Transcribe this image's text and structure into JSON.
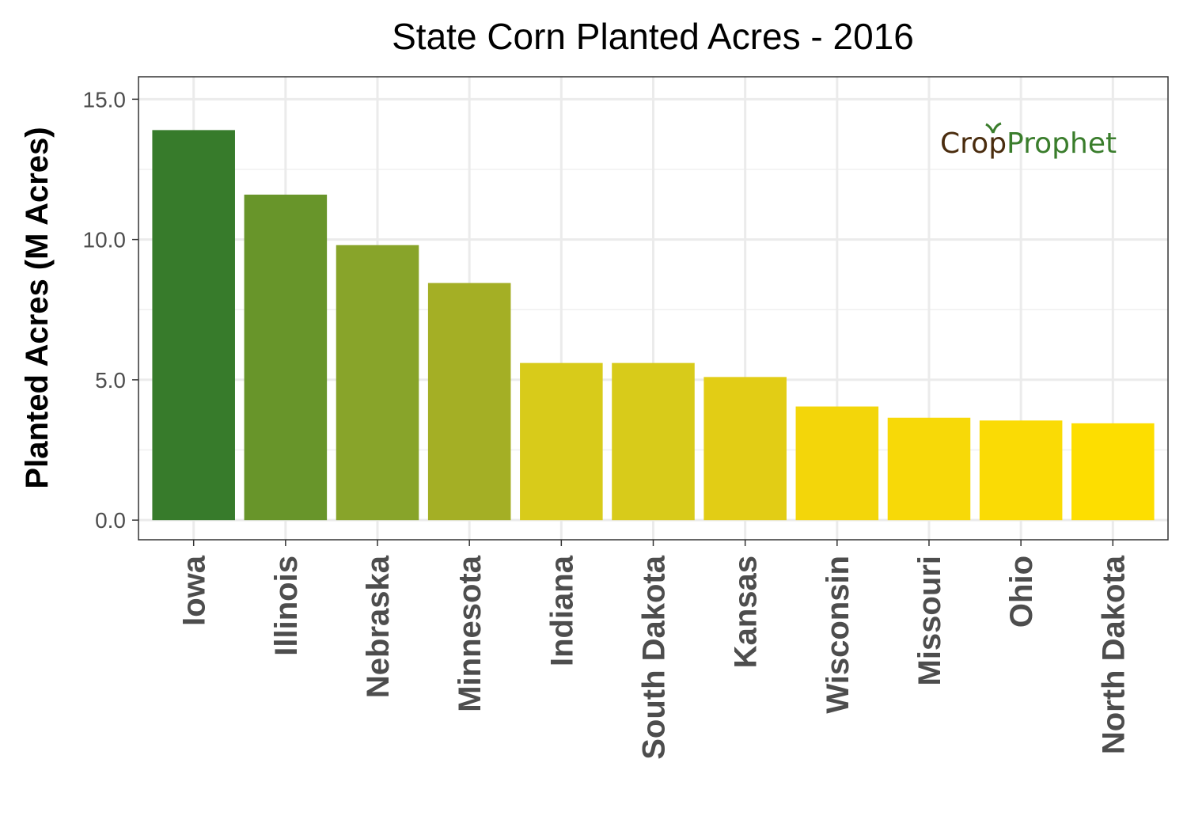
{
  "chart_data": {
    "type": "bar",
    "title": "State Corn Planted Acres - 2016",
    "xlabel": "",
    "ylabel": "Planted Acres (M Acres)",
    "categories": [
      "Iowa",
      "Illinois",
      "Nebraska",
      "Minnesota",
      "Indiana",
      "South Dakota",
      "Kansas",
      "Wisconsin",
      "Missouri",
      "Ohio",
      "North Dakota"
    ],
    "values": [
      13.9,
      11.6,
      9.8,
      8.45,
      5.6,
      5.6,
      5.1,
      4.05,
      3.65,
      3.55,
      3.45
    ],
    "ylim": [
      -0.7,
      15.8
    ],
    "yticks": [
      0,
      5,
      10,
      15
    ],
    "ytick_labels": [
      "0.0",
      "5.0",
      "10.0",
      "15.0"
    ],
    "grid": true,
    "legend": "none",
    "bar_colors": [
      "#377B2B",
      "#68952A",
      "#88A42A",
      "#A4AF25",
      "#D8CB1A",
      "#D8CB1A",
      "#E2CD15",
      "#F3D60A",
      "#F7D908",
      "#FADB05",
      "#FDDE00"
    ]
  },
  "logo": {
    "part1": "Cr",
    "part2": "p",
    "part3": "Prophet",
    "brown": "#4A2C0E",
    "green": "#3A7D2C"
  }
}
